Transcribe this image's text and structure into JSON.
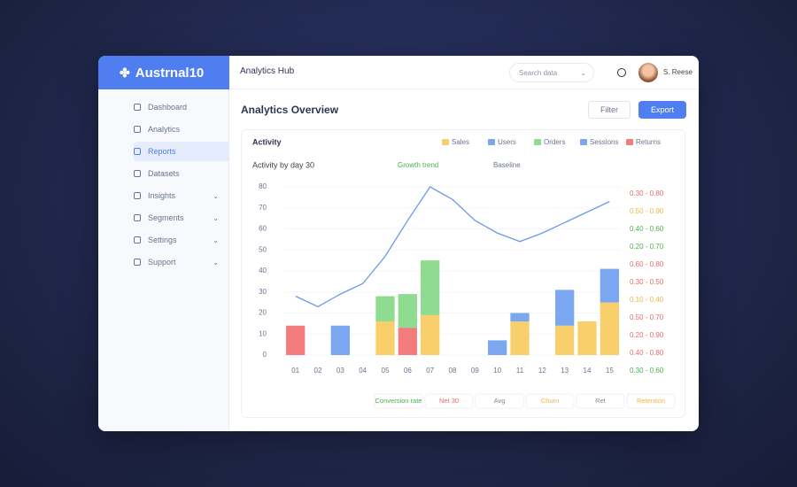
{
  "app": {
    "brand": "Austrnal10",
    "header_title": "Analytics Hub",
    "search": "Search data",
    "user": "S. Reese"
  },
  "sidebar": {
    "items": [
      "Dashboard",
      "Analytics",
      "Reports",
      "Datasets",
      "Insights",
      "Segments",
      "Settings",
      "Support"
    ],
    "active": 2
  },
  "page": {
    "title": "Analytics Overview",
    "buttons": [
      "Filter",
      "Export"
    ]
  },
  "card": {
    "title": "Activity",
    "subtitle": "Activity by day 30",
    "notes": [
      "Growth trend",
      "Baseline"
    ],
    "legend": [
      {
        "label": "Sales",
        "color": "#f9cf6b"
      },
      {
        "label": "Users",
        "color": "#7aa7f0"
      },
      {
        "label": "Orders",
        "color": "#8fdb8f"
      },
      {
        "label": "Sessions",
        "color": "#7aa7f0"
      },
      {
        "label": "Returns",
        "color": "#f47c7c"
      }
    ],
    "ranges": [
      {
        "label": "0.30 - 0.80",
        "color": "#e86a6a"
      },
      {
        "label": "0.50 - 0.90",
        "color": "#f0b742"
      },
      {
        "label": "0.40 - 0.60",
        "color": "#4caf50"
      },
      {
        "label": "0.20 - 0.70",
        "color": "#4caf50"
      },
      {
        "label": "0.60 - 0.80",
        "color": "#e86a6a"
      },
      {
        "label": "0.30 - 0.50",
        "color": "#e86a6a"
      },
      {
        "label": "0.10 - 0.40",
        "color": "#f0b742"
      },
      {
        "label": "0.50 - 0.70",
        "color": "#e86a6a"
      },
      {
        "label": "0.20 - 0.90",
        "color": "#e86a6a"
      },
      {
        "label": "0.40 - 0.80",
        "color": "#e86a6a"
      },
      {
        "label": "0.30 - 0.60",
        "color": "#4caf50"
      }
    ],
    "footer": [
      {
        "label": "Conversion rate",
        "color": "#4caf50"
      },
      {
        "label": "Net 30",
        "color": "#e86a6a"
      },
      {
        "label": "Avg",
        "color": "#888888"
      },
      {
        "label": "Churn",
        "color": "#f0b742"
      },
      {
        "label": "Ret",
        "color": "#888888"
      },
      {
        "label": "Retention",
        "color": "#f0b742"
      }
    ]
  },
  "chart": {
    "categories": [
      "01",
      "02",
      "03",
      "04",
      "05",
      "06",
      "07",
      "08",
      "09",
      "10",
      "11",
      "12",
      "13",
      "14",
      "15"
    ],
    "ylim": [
      0,
      80
    ],
    "yticks": [
      0,
      10,
      20,
      30,
      40,
      50,
      60,
      70,
      80
    ],
    "series": [
      {
        "name": "Returns",
        "color": "#f47c7c",
        "values": [
          14,
          0,
          0,
          0,
          0,
          13,
          0,
          0,
          0,
          0,
          0,
          0,
          0,
          0,
          0
        ]
      },
      {
        "name": "Sales",
        "color": "#f9cf6b",
        "values": [
          0,
          0,
          0,
          0,
          16,
          0,
          19,
          0,
          0,
          0,
          16,
          0,
          14,
          16,
          25
        ]
      },
      {
        "name": "Orders",
        "color": "#8fdb8f",
        "values": [
          0,
          0,
          0,
          0,
          12,
          16,
          26,
          0,
          0,
          0,
          0,
          0,
          0,
          0,
          0
        ]
      },
      {
        "name": "Users",
        "color": "#7aa7f0",
        "values": [
          0,
          0,
          14,
          0,
          0,
          0,
          0,
          0,
          0,
          7,
          4,
          0,
          17,
          0,
          16
        ]
      }
    ],
    "line": {
      "color": "#6b9be8",
      "values": [
        28,
        23,
        29,
        34,
        47,
        64,
        80,
        74,
        64,
        58,
        54,
        58,
        63,
        68,
        73
      ]
    }
  }
}
